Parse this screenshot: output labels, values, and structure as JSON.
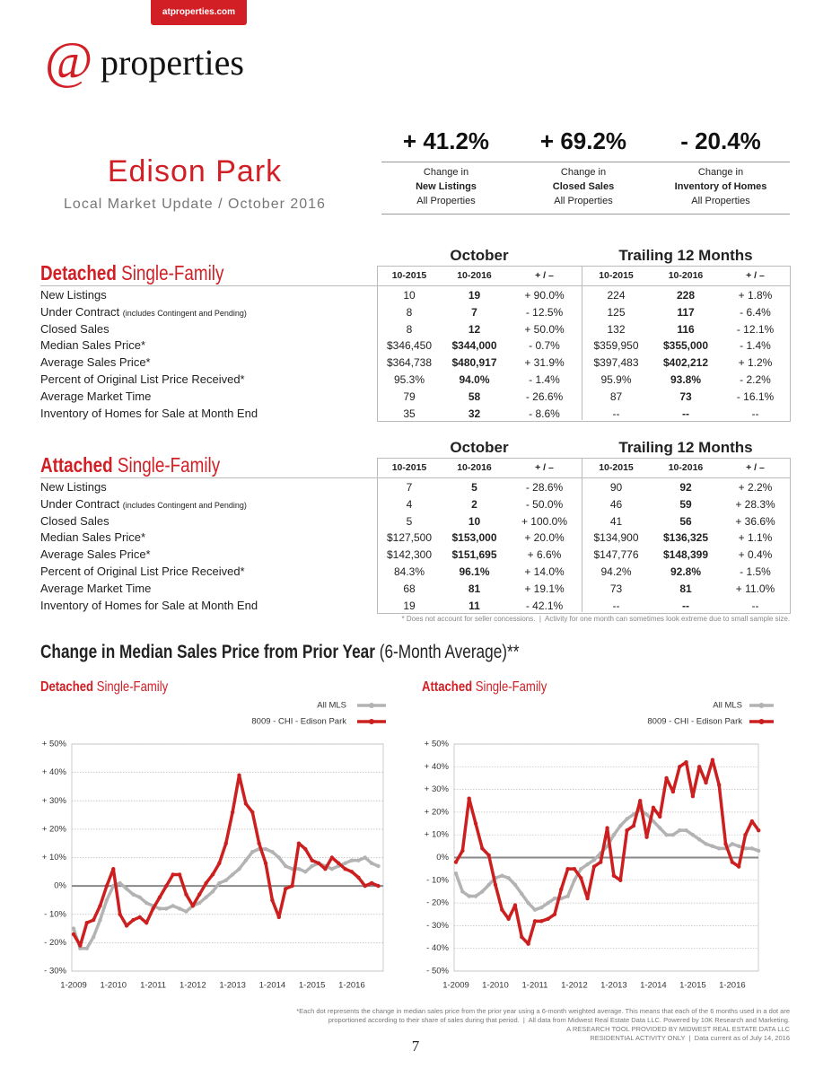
{
  "header": {
    "site": "atproperties.com",
    "logo_at": "@",
    "logo_word": "properties",
    "title": "Edison Park",
    "subtitle": "Local Market Update / October 2016"
  },
  "kpis": [
    {
      "value": "+ 41.2%",
      "line1": "Change in",
      "line2": "New Listings",
      "line3": "All Properties"
    },
    {
      "value": "+ 69.2%",
      "line1": "Change in",
      "line2": "Closed Sales",
      "line3": "All Properties"
    },
    {
      "value": "- 20.4%",
      "line1": "Change in",
      "line2": "Inventory of Homes",
      "line3": "All Properties"
    }
  ],
  "tables": [
    {
      "title_bold": "Detached",
      "title_rest": "Single-Family",
      "groups": [
        "October",
        "Trailing 12 Months"
      ],
      "columns": [
        "10-2015",
        "10-2016",
        "+ / –",
        "10-2015",
        "10-2016",
        "+ / –"
      ],
      "rows": [
        {
          "label": "New Listings",
          "cells": [
            "10",
            "19",
            "+ 90.0%",
            "224",
            "228",
            "+ 1.8%"
          ]
        },
        {
          "label": "Under Contract",
          "note": "(includes Contingent and Pending)",
          "cells": [
            "8",
            "7",
            "- 12.5%",
            "125",
            "117",
            "- 6.4%"
          ]
        },
        {
          "label": "Closed Sales",
          "cells": [
            "8",
            "12",
            "+ 50.0%",
            "132",
            "116",
            "- 12.1%"
          ]
        },
        {
          "label": "Median Sales Price*",
          "cells": [
            "$346,450",
            "$344,000",
            "- 0.7%",
            "$359,950",
            "$355,000",
            "- 1.4%"
          ]
        },
        {
          "label": "Average Sales Price*",
          "cells": [
            "$364,738",
            "$480,917",
            "+ 31.9%",
            "$397,483",
            "$402,212",
            "+ 1.2%"
          ]
        },
        {
          "label": "Percent of Original List Price Received*",
          "cells": [
            "95.3%",
            "94.0%",
            "- 1.4%",
            "95.9%",
            "93.8%",
            "- 2.2%"
          ]
        },
        {
          "label": "Average Market Time",
          "cells": [
            "79",
            "58",
            "- 26.6%",
            "87",
            "73",
            "- 16.1%"
          ]
        },
        {
          "label": "Inventory of Homes for Sale at Month End",
          "cells": [
            "35",
            "32",
            "- 8.6%",
            "--",
            "--",
            "--"
          ]
        }
      ]
    },
    {
      "title_bold": "Attached",
      "title_rest": "Single-Family",
      "groups": [
        "October",
        "Trailing 12 Months"
      ],
      "columns": [
        "10-2015",
        "10-2016",
        "+ / –",
        "10-2015",
        "10-2016",
        "+ / –"
      ],
      "rows": [
        {
          "label": "New Listings",
          "cells": [
            "7",
            "5",
            "- 28.6%",
            "90",
            "92",
            "+ 2.2%"
          ]
        },
        {
          "label": "Under Contract",
          "note": "(includes Contingent and Pending)",
          "cells": [
            "4",
            "2",
            "- 50.0%",
            "46",
            "59",
            "+ 28.3%"
          ]
        },
        {
          "label": "Closed Sales",
          "cells": [
            "5",
            "10",
            "+ 100.0%",
            "41",
            "56",
            "+ 36.6%"
          ]
        },
        {
          "label": "Median Sales Price*",
          "cells": [
            "$127,500",
            "$153,000",
            "+ 20.0%",
            "$134,900",
            "$136,325",
            "+ 1.1%"
          ]
        },
        {
          "label": "Average Sales Price*",
          "cells": [
            "$142,300",
            "$151,695",
            "+ 6.6%",
            "$147,776",
            "$148,399",
            "+ 0.4%"
          ]
        },
        {
          "label": "Percent of Original List Price Received*",
          "cells": [
            "84.3%",
            "96.1%",
            "+ 14.0%",
            "94.2%",
            "92.8%",
            "- 1.5%"
          ]
        },
        {
          "label": "Average Market Time",
          "cells": [
            "68",
            "81",
            "+ 19.1%",
            "73",
            "81",
            "+ 11.0%"
          ]
        },
        {
          "label": "Inventory of Homes for Sale at Month End",
          "cells": [
            "19",
            "11",
            "- 42.1%",
            "--",
            "--",
            "--"
          ]
        }
      ]
    }
  ],
  "table_note": "* Does not account for seller concessions.  |  Activity for one month can sometimes look extreme due to small sample size.",
  "chart_section": {
    "title_bold": "Change in Median Sales Price from Prior Year",
    "title_rest": "(6-Month Average)**"
  },
  "chart_data": [
    {
      "type": "line",
      "title_bold": "Detached",
      "title_rest": "Single-Family",
      "categories": [
        "1-2009",
        null,
        null,
        null,
        null,
        null,
        "1-2010",
        null,
        null,
        null,
        null,
        null,
        "1-2011",
        null,
        null,
        null,
        null,
        null,
        "1-2012",
        null,
        null,
        null,
        null,
        null,
        "1-2013",
        null,
        null,
        null,
        null,
        null,
        "1-2014",
        null,
        null,
        null,
        null,
        null,
        "1-2015",
        null,
        null,
        null,
        null,
        null,
        "1-2016",
        null,
        null,
        null,
        null
      ],
      "series": [
        {
          "name": "All MLS",
          "color": "#b3b3b3",
          "values": [
            -15,
            -22,
            -22,
            -18,
            -12,
            -5,
            0,
            1,
            -1,
            -3,
            -4,
            -6,
            -7,
            -8,
            -8,
            -7,
            -8,
            -9,
            -7,
            -6,
            -4,
            -2,
            1,
            2,
            4,
            6,
            9,
            12,
            13,
            13,
            12,
            10,
            7,
            6,
            6,
            5,
            7,
            8,
            7,
            6,
            7,
            8,
            9,
            9,
            10,
            8,
            7
          ]
        },
        {
          "name": "8009 - CHI - Edison Park",
          "color": "#cc1f1f",
          "values": [
            -17,
            -21,
            -13,
            -12,
            -7,
            0,
            6,
            -10,
            -14,
            -12,
            -11,
            -13,
            -8,
            -4,
            0,
            4,
            4,
            -3,
            -7,
            -3,
            1,
            4,
            8,
            15,
            26,
            39,
            29,
            26,
            15,
            8,
            -5,
            -11,
            -1,
            0,
            15,
            13,
            9,
            8,
            6,
            10,
            8,
            6,
            5,
            3,
            0,
            1,
            0
          ]
        }
      ],
      "ylim": [
        -30,
        50
      ],
      "yticks": [
        {
          "value": -30,
          "label": "- 30%"
        },
        {
          "value": -20,
          "label": "- 20%"
        },
        {
          "value": -10,
          "label": "- 10%"
        },
        {
          "value": 0,
          "label": "0%"
        },
        {
          "value": 10,
          "label": "+ 10%"
        },
        {
          "value": 20,
          "label": "+ 20%"
        },
        {
          "value": 30,
          "label": "+ 30%"
        },
        {
          "value": 40,
          "label": "+ 40%"
        },
        {
          "value": 50,
          "label": "+ 50%"
        }
      ],
      "grid": true
    },
    {
      "type": "line",
      "title_bold": "Attached",
      "title_rest": "Single-Family",
      "categories": [
        "1-2009",
        null,
        null,
        null,
        null,
        null,
        "1-2010",
        null,
        null,
        null,
        null,
        null,
        "1-2011",
        null,
        null,
        null,
        null,
        null,
        "1-2012",
        null,
        null,
        null,
        null,
        null,
        "1-2013",
        null,
        null,
        null,
        null,
        null,
        "1-2014",
        null,
        null,
        null,
        null,
        null,
        "1-2015",
        null,
        null,
        null,
        null,
        null,
        "1-2016",
        null,
        null,
        null,
        null
      ],
      "series": [
        {
          "name": "All MLS",
          "color": "#b3b3b3",
          "values": [
            -7,
            -15,
            -17,
            -17,
            -15,
            -12,
            -9,
            -8,
            -9,
            -12,
            -16,
            -20,
            -23,
            -22,
            -20,
            -18,
            -18,
            -17,
            -10,
            -5,
            -3,
            -1,
            2,
            5,
            10,
            14,
            17,
            19,
            21,
            19,
            16,
            13,
            10,
            10,
            12,
            12,
            10,
            8,
            6,
            5,
            4,
            4,
            6,
            5,
            4,
            4,
            3
          ]
        },
        {
          "name": "8009 - CHI - Edison Park",
          "color": "#cc1f1f",
          "values": [
            -2,
            3,
            26,
            15,
            4,
            1,
            -12,
            -23,
            -27,
            -21,
            -35,
            -38,
            -28,
            -28,
            -27,
            -25,
            -14,
            -5,
            -5,
            -9,
            -18,
            -4,
            -2,
            13,
            -8,
            -10,
            12,
            14,
            25,
            9,
            22,
            18,
            35,
            29,
            40,
            42,
            27,
            40,
            33,
            43,
            32,
            6,
            -2,
            -4,
            10,
            16,
            12
          ]
        }
      ],
      "ylim": [
        -50,
        50
      ],
      "yticks": [
        {
          "value": -50,
          "label": "- 50%"
        },
        {
          "value": -40,
          "label": "- 40%"
        },
        {
          "value": -30,
          "label": "- 30%"
        },
        {
          "value": -20,
          "label": "- 20%"
        },
        {
          "value": -10,
          "label": "- 10%"
        },
        {
          "value": 0,
          "label": "0%"
        },
        {
          "value": 10,
          "label": "+ 10%"
        },
        {
          "value": 20,
          "label": "+ 20%"
        },
        {
          "value": 30,
          "label": "+ 30%"
        },
        {
          "value": 40,
          "label": "+ 40%"
        },
        {
          "value": 50,
          "label": "+ 50%"
        }
      ],
      "grid": true
    }
  ],
  "footer": {
    "lines": [
      "*Each dot represents the change in median sales price from the prior year using a 6-month weighted average. This means that each of the 6 months used in a dot are",
      "proportioned according to their share of sales during that period.  |  All data from Midwest Real Estate Data LLC. Powered by 10K Research and Marketing.",
      "A RESEARCH TOOL PROVIDED BY MIDWEST REAL ESTATE DATA LLC",
      "RESIDENTIAL ACTIVITY ONLY  |  Data current as of July 14, 2016"
    ],
    "page": "7"
  }
}
